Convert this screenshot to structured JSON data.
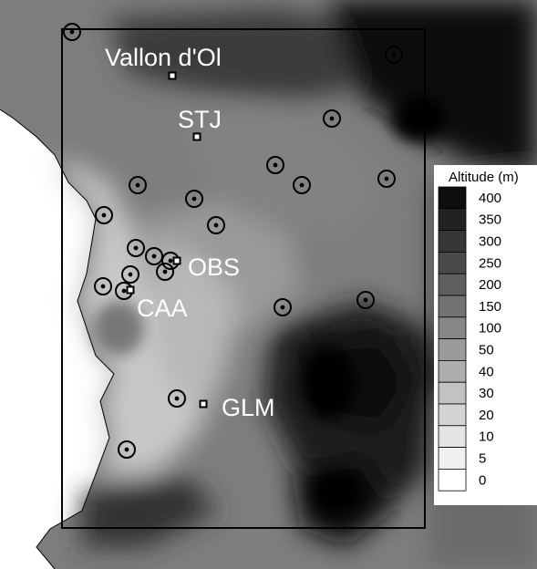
{
  "map": {
    "sites": [
      {
        "id": "vallon",
        "label": "Vallon d'Ol"
      },
      {
        "id": "stj",
        "label": "STJ"
      },
      {
        "id": "obs",
        "label": "OBS"
      },
      {
        "id": "caa",
        "label": "CAA"
      },
      {
        "id": "glm",
        "label": "GLM"
      }
    ],
    "station_count": 24
  },
  "legend": {
    "title": "Altitude (m)",
    "levels": [
      {
        "label": "400",
        "color": "#0e0e0e"
      },
      {
        "label": "350",
        "color": "#222222"
      },
      {
        "label": "300",
        "color": "#363636"
      },
      {
        "label": "250",
        "color": "#4a4a4a"
      },
      {
        "label": "200",
        "color": "#5e5e5e"
      },
      {
        "label": "150",
        "color": "#727272"
      },
      {
        "label": "100",
        "color": "#868686"
      },
      {
        "label": "50",
        "color": "#9a9a9a"
      },
      {
        "label": "40",
        "color": "#aeaeae"
      },
      {
        "label": "30",
        "color": "#c2c2c2"
      },
      {
        "label": "20",
        "color": "#d4d4d4"
      },
      {
        "label": "10",
        "color": "#e4e4e4"
      },
      {
        "label": "5",
        "color": "#f0f0f0"
      },
      {
        "label": "0",
        "color": "#ffffff"
      }
    ]
  }
}
